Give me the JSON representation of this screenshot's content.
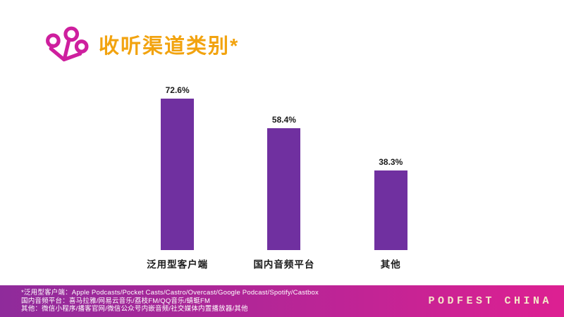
{
  "title": {
    "text": "收听渠道类别*"
  },
  "colors": {
    "title": "#F2A30F",
    "icon": "#CE1F9E",
    "bar": "#7030A0",
    "footer_gradient_left": "#8F2B9B",
    "footer_gradient_right": "#DD2092",
    "footnote_text": "#FFFFFF",
    "brand_text": "#F5E7C9"
  },
  "chart_data": {
    "type": "bar",
    "categories": [
      "泛用型客户端",
      "国内音频平台",
      "其他"
    ],
    "values": [
      72.6,
      58.4,
      38.3
    ],
    "value_labels": [
      "72.6%",
      "58.4%",
      "38.3%"
    ],
    "title": "收听渠道类别*",
    "xlabel": "",
    "ylabel": "",
    "ylim": [
      0,
      80
    ],
    "grid": false,
    "legend": false,
    "bar_color": "#7030A0"
  },
  "footer": {
    "notes": [
      "*泛用型客户端：Apple Podcasts/Pocket Casts/Castro/Overcast/Google Podcast/Spotify/Castbox",
      "国内音频平台：喜马拉雅/网易云音乐/荔枝FM/QQ音乐/蜻蜓FM",
      "其他：微信小程序/播客官网/微信公众号内嵌音频/社交媒体内置播放器/其他"
    ],
    "brand": "PODFEST CHINA"
  }
}
